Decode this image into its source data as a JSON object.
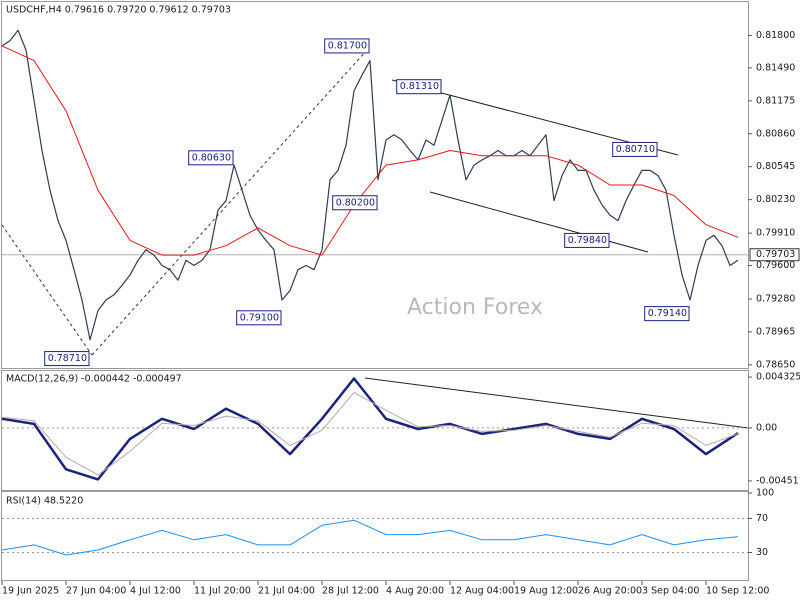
{
  "chart_data": [
    {
      "type": "line",
      "title": "USDCHF,H4  0.79616 0.79720 0.79612 0.79703",
      "watermark": "Action Forex",
      "xlim": [
        0,
        93
      ],
      "ylim": [
        0.7862,
        0.8212
      ],
      "yticks": [
        {
          "value": 0.818,
          "label": "0.81800"
        },
        {
          "value": 0.8149,
          "label": "0.81490"
        },
        {
          "value": 0.81175,
          "label": "0.81175"
        },
        {
          "value": 0.8086,
          "label": "0.80860"
        },
        {
          "value": 0.80545,
          "label": "0.80545"
        },
        {
          "value": 0.8023,
          "label": "0.80230"
        },
        {
          "value": 0.7991,
          "label": "0.79910"
        },
        {
          "value": 0.796,
          "label": "0.79600"
        },
        {
          "value": 0.7928,
          "label": "0.79280"
        },
        {
          "value": 0.78965,
          "label": "0.78965"
        },
        {
          "value": 0.7865,
          "label": "0.78650"
        }
      ],
      "current": {
        "value": 0.79703,
        "label": "0.79703"
      },
      "series": [
        {
          "color": "#2e3d52",
          "width": 1.2,
          "x": [
            0,
            1,
            2,
            3,
            4,
            5,
            6,
            7,
            8,
            9,
            10,
            11,
            12,
            13,
            14,
            15,
            16,
            17,
            18,
            19,
            20,
            21,
            22,
            23,
            24,
            25,
            26,
            27,
            28,
            29,
            30,
            31,
            32,
            33,
            34,
            35,
            36,
            37,
            38,
            39,
            40,
            41,
            42,
            43,
            44,
            45,
            46,
            47,
            48,
            49,
            50,
            51,
            52,
            53,
            54,
            55,
            56,
            57,
            58,
            59,
            60,
            61,
            62,
            63,
            64,
            65,
            66,
            67,
            68,
            69,
            70,
            71,
            72,
            73,
            74,
            75,
            76,
            77,
            78,
            79,
            80,
            81,
            82,
            83,
            84,
            85,
            86,
            87,
            88,
            89,
            90,
            91,
            92
          ],
          "values": [
            0.817,
            0.8175,
            0.8185,
            0.8166,
            0.8118,
            0.807,
            0.8032,
            0.8003,
            0.7984,
            0.7956,
            0.7927,
            0.7889,
            0.7917,
            0.7927,
            0.7932,
            0.7941,
            0.7951,
            0.7965,
            0.7975,
            0.797,
            0.796,
            0.7956,
            0.7946,
            0.7965,
            0.796,
            0.7965,
            0.7975,
            0.8013,
            0.8022,
            0.8056,
            0.8032,
            0.8008,
            0.7994,
            0.7984,
            0.7975,
            0.7927,
            0.7936,
            0.7956,
            0.796,
            0.7956,
            0.7975,
            0.8042,
            0.8051,
            0.8075,
            0.8127,
            0.8142,
            0.8156,
            0.8042,
            0.808,
            0.8085,
            0.808,
            0.807,
            0.8061,
            0.808,
            0.8075,
            0.8099,
            0.8123,
            0.808,
            0.8042,
            0.8056,
            0.8061,
            0.8065,
            0.807,
            0.8065,
            0.8065,
            0.807,
            0.8065,
            0.8075,
            0.8085,
            0.8022,
            0.8046,
            0.8061,
            0.8051,
            0.8051,
            0.8032,
            0.8018,
            0.8008,
            0.8003,
            0.8022,
            0.8037,
            0.8051,
            0.8051,
            0.8046,
            0.8032,
            0.7989,
            0.7951,
            0.7927,
            0.796,
            0.7984,
            0.7989,
            0.7979,
            0.796,
            0.7965
          ]
        },
        {
          "color": "#e8161b",
          "width": 1,
          "x": [
            0,
            4,
            8,
            12,
            16,
            20,
            24,
            28,
            32,
            36,
            40,
            44,
            48,
            52,
            56,
            60,
            64,
            68,
            72,
            76,
            80,
            84,
            88,
            92
          ],
          "values": [
            0.817,
            0.8156,
            0.8108,
            0.8032,
            0.7984,
            0.797,
            0.797,
            0.7979,
            0.7996,
            0.7979,
            0.797,
            0.8018,
            0.8056,
            0.8061,
            0.807,
            0.8065,
            0.8065,
            0.8065,
            0.8056,
            0.8037,
            0.8037,
            0.8027,
            0.7999,
            0.7987
          ]
        }
      ],
      "annotations": [
        {
          "x": 46,
          "value": 0.817,
          "label": "0.81700"
        },
        {
          "x": 29,
          "value": 0.8063,
          "label": "0.80630"
        },
        {
          "x": 11,
          "value": 0.7871,
          "label": "0.78710"
        },
        {
          "x": 35,
          "value": 0.791,
          "label": "0.79100"
        },
        {
          "x": 47,
          "value": 0.802,
          "label": "0.80200"
        },
        {
          "x": 55,
          "value": 0.8131,
          "label": "0.81310"
        },
        {
          "x": 76,
          "value": 0.7984,
          "label": "0.79840"
        },
        {
          "x": 82,
          "value": 0.8071,
          "label": "0.80710"
        },
        {
          "x": 86,
          "value": 0.7914,
          "label": "0.79140"
        }
      ]
    },
    {
      "type": "line",
      "title": "MACD(12,26,9) -0.000442 -0.000497",
      "xlim": [
        0,
        93
      ],
      "ylim": [
        -0.005283,
        0.00484
      ],
      "yticks": [
        0.004325,
        {
          "value": 0,
          "label": "0.00"
        },
        -0.004511
      ],
      "levels": [
        0
      ],
      "series": [
        {
          "color": "#1a237e",
          "width": 2.5,
          "x": [
            0,
            4,
            8,
            12,
            16,
            20,
            24,
            28,
            32,
            36,
            40,
            44,
            48,
            52,
            56,
            60,
            64,
            68,
            72,
            76,
            80,
            84,
            88,
            92
          ],
          "values": [
            0.00077,
            0.00034,
            -0.00352,
            -0.00438,
            -0.00094,
            0.00077,
            -9e-05,
            0.00163,
            0.00034,
            -0.00223,
            0.00077,
            0.0042,
            0.00077,
            -9e-05,
            0.00034,
            -0.00051,
            -9e-05,
            0.00034,
            -0.00051,
            -0.00094,
            0.00077,
            -9e-05,
            -0.00223,
            -0.000442
          ]
        },
        {
          "color": "#b8a8a8",
          "width": 1,
          "x": [
            0,
            4,
            8,
            12,
            16,
            20,
            24,
            28,
            32,
            36,
            40,
            44,
            48,
            52,
            56,
            60,
            64,
            68,
            72,
            76,
            80,
            84,
            88,
            92
          ],
          "values": [
            0.0009,
            0.0006,
            -0.0025,
            -0.004,
            -0.002,
            0.0004,
            0.0002,
            0.001,
            0.0006,
            -0.0015,
            -0.0002,
            0.003,
            0.0015,
            0.0001,
            0.0002,
            -0.0003,
            -0.0002,
            0.0002,
            -0.0003,
            -0.0008,
            0.0004,
            0.0002,
            -0.0015,
            -0.000497
          ]
        }
      ]
    },
    {
      "type": "line",
      "title": "RSI(14) 48.5220",
      "xlim": [
        0,
        93
      ],
      "ylim": [
        0,
        100
      ],
      "yticks": [
        100,
        70,
        30
      ],
      "levels": [
        70,
        30
      ],
      "xticks": [
        {
          "value": 0,
          "label": "19 Jun 2025"
        },
        {
          "value": 8,
          "label": "27 Jun 04:00"
        },
        {
          "value": 16,
          "label": "4 Jul 12:00"
        },
        {
          "value": 24,
          "label": "11 Jul 20:00"
        },
        {
          "value": 32,
          "label": "21 Jul 04:00"
        },
        {
          "value": 40,
          "label": "28 Jul 12:00"
        },
        {
          "value": 48,
          "label": "4 Aug 20:00"
        },
        {
          "value": 56,
          "label": "12 Aug 04:00"
        },
        {
          "value": 64,
          "label": "19 Aug 12:00"
        },
        {
          "value": 72,
          "label": "26 Aug 20:00"
        },
        {
          "value": 80,
          "label": "3 Sep 04:00"
        },
        {
          "value": 88,
          "label": "10 Sep 12:00"
        }
      ],
      "series": [
        {
          "color": "#1e90ff",
          "width": 1,
          "x": [
            0,
            4,
            8,
            12,
            16,
            20,
            24,
            28,
            32,
            36,
            40,
            44,
            48,
            52,
            56,
            60,
            64,
            68,
            72,
            76,
            80,
            84,
            88,
            92
          ],
          "values": [
            33,
            39,
            27,
            33,
            45,
            56,
            45,
            51,
            39,
            39,
            62,
            68,
            51,
            51,
            56,
            45,
            45,
            51,
            45,
            39,
            51,
            39,
            45,
            48.522
          ]
        }
      ]
    }
  ]
}
